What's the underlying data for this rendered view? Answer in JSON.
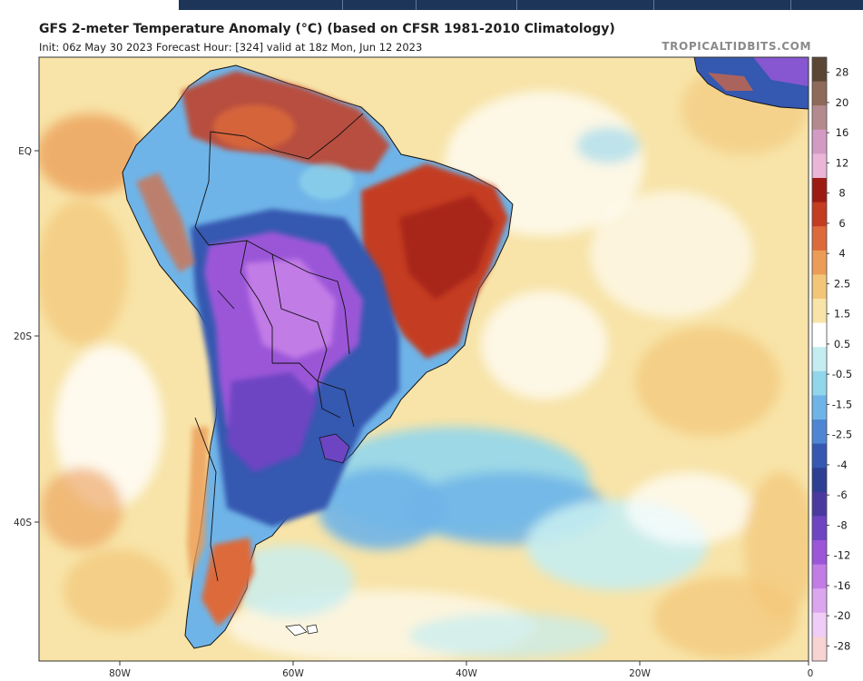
{
  "header": {
    "title": "GFS 2-meter Temperature Anomaly (°C) (based on CFSR 1981-2010 Climatology)",
    "subtitle": "Init: 06z May 30 2023   Forecast Hour: [324]   valid at 18z Mon, Jun 12 2023",
    "watermark": "TROPICALTIDBITS.COM"
  },
  "map": {
    "region": "South America",
    "lat_labels": [
      "EQ",
      "20S",
      "40S"
    ],
    "lon_labels": [
      "80W",
      "60W",
      "40W",
      "20W",
      "0"
    ]
  },
  "colorbar": {
    "labels": [
      "28",
      "20",
      "16",
      "12",
      "8",
      "6",
      "4",
      "2.5",
      "1.5",
      "0.5",
      "-0.5",
      "-1.5",
      "-2.5",
      "-4",
      "-6",
      "-8",
      "-12",
      "-16",
      "-20",
      "-28"
    ],
    "colors": [
      "#5b4636",
      "#8e6a5a",
      "#b58a8f",
      "#d39bc4",
      "#e9b6d7",
      "#9c1c14",
      "#c43c22",
      "#dd6a3a",
      "#eb9c56",
      "#f2c679",
      "#f8e4a8",
      "#ffffff",
      "#c5edf1",
      "#92d6ec",
      "#6fb4e8",
      "#4f86d4",
      "#3558b0",
      "#2d3f92",
      "#4a3aa0",
      "#6d45c2",
      "#9b57d8",
      "#c27ce6",
      "#dca6ee",
      "#f0cdf6",
      "#f7d3d2"
    ]
  },
  "anomaly_colors": {
    "ocean_warm": "#f8e4a8",
    "ocean_mild": "#f2c679",
    "warm_strong": "#c43c22",
    "cold_blue": "#6fb4e8",
    "cold_deep": "#3558b0",
    "cold_purple": "#9b57d8",
    "cold_lilac": "#c27ce6"
  }
}
